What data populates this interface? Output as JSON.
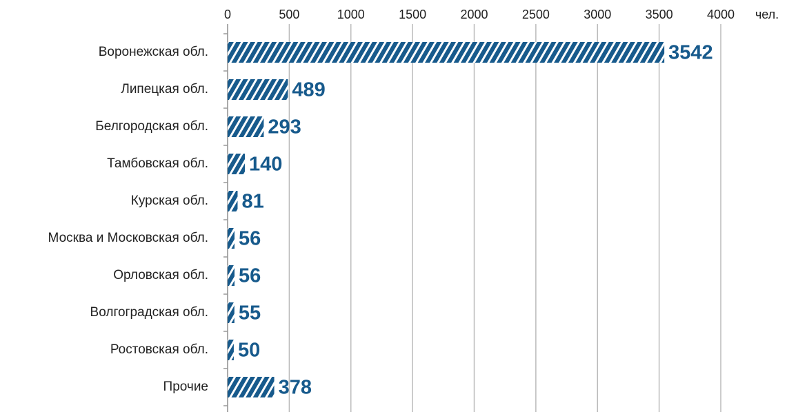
{
  "chart_data": {
    "type": "hbar",
    "xlabel": "чел.",
    "categories": [
      "Воронежская обл.",
      "Липецкая обл.",
      "Белгородская обл.",
      "Тамбовская обл.",
      "Курская обл.",
      "Москва и Московская обл.",
      "Орловская обл.",
      "Волгоградская обл.",
      "Ростовская обл.",
      "Прочие"
    ],
    "values": [
      3542,
      489,
      293,
      140,
      81,
      56,
      56,
      55,
      50,
      378
    ],
    "color": "#175a8c",
    "hatch": true,
    "xlim": [
      0,
      4000
    ],
    "xticks": [
      0,
      500,
      1000,
      1500,
      2000,
      2500,
      3000,
      3500,
      4000
    ],
    "grid": true
  }
}
